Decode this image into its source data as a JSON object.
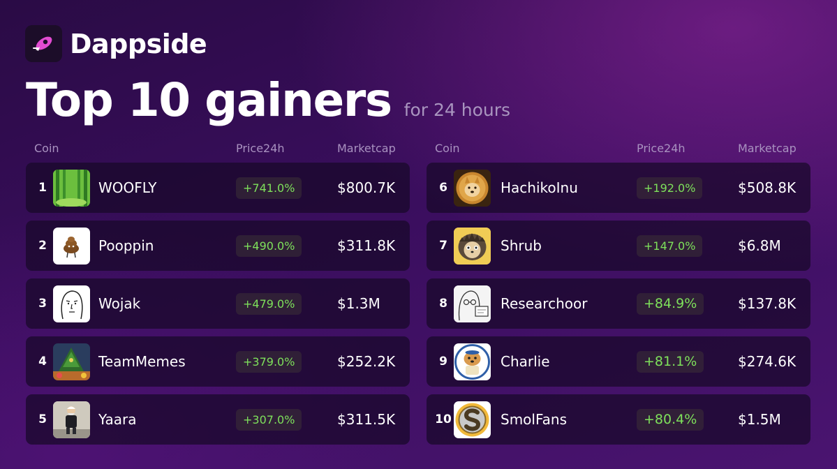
{
  "brand": {
    "name": "Dappside",
    "logo_icon": "rocket-logo-icon",
    "accent": "#e24bd2"
  },
  "headline": {
    "title": "Top 10 gainers",
    "subtitle": "for 24 hours"
  },
  "columns": {
    "coin": "Coin",
    "price": "Price24h",
    "marketcap": "Marketcap"
  },
  "colors": {
    "gain": "#7ee15b",
    "row_bg": "#180828"
  },
  "left_rows": [
    {
      "rank": "1",
      "name": "WOOFLY",
      "change": "+741.0%",
      "marketcap": "$800.7K",
      "icon": "woofly-forest-icon"
    },
    {
      "rank": "2",
      "name": "Pooppin",
      "change": "+490.0%",
      "marketcap": "$311.8K",
      "icon": "pooppin-icon"
    },
    {
      "rank": "3",
      "name": "Wojak",
      "change": "+479.0%",
      "marketcap": "$1.3M",
      "icon": "wojak-face-icon"
    },
    {
      "rank": "4",
      "name": "TeamMemes",
      "change": "+379.0%",
      "marketcap": "$252.2K",
      "icon": "teammemes-icon"
    },
    {
      "rank": "5",
      "name": "Yaara",
      "change": "+307.0%",
      "marketcap": "$311.5K",
      "icon": "yaara-icon"
    }
  ],
  "right_rows": [
    {
      "rank": "6",
      "name": "HachikoInu",
      "change": "+192.0%",
      "marketcap": "$508.8K",
      "icon": "hachiko-coin-icon"
    },
    {
      "rank": "7",
      "name": "Shrub",
      "change": "+147.0%",
      "marketcap": "$6.8M",
      "icon": "hedgehog-icon"
    },
    {
      "rank": "8",
      "name": "Researchoor",
      "change": "+84.9%",
      "marketcap": "$137.8K",
      "icon": "researchoor-icon"
    },
    {
      "rank": "9",
      "name": "Charlie",
      "change": "+81.1%",
      "marketcap": "$274.6K",
      "icon": "charlie-dog-icon"
    },
    {
      "rank": "10",
      "name": "SmolFans",
      "change": "+80.4%",
      "marketcap": "$1.5M",
      "icon": "smolfans-s-icon"
    }
  ]
}
